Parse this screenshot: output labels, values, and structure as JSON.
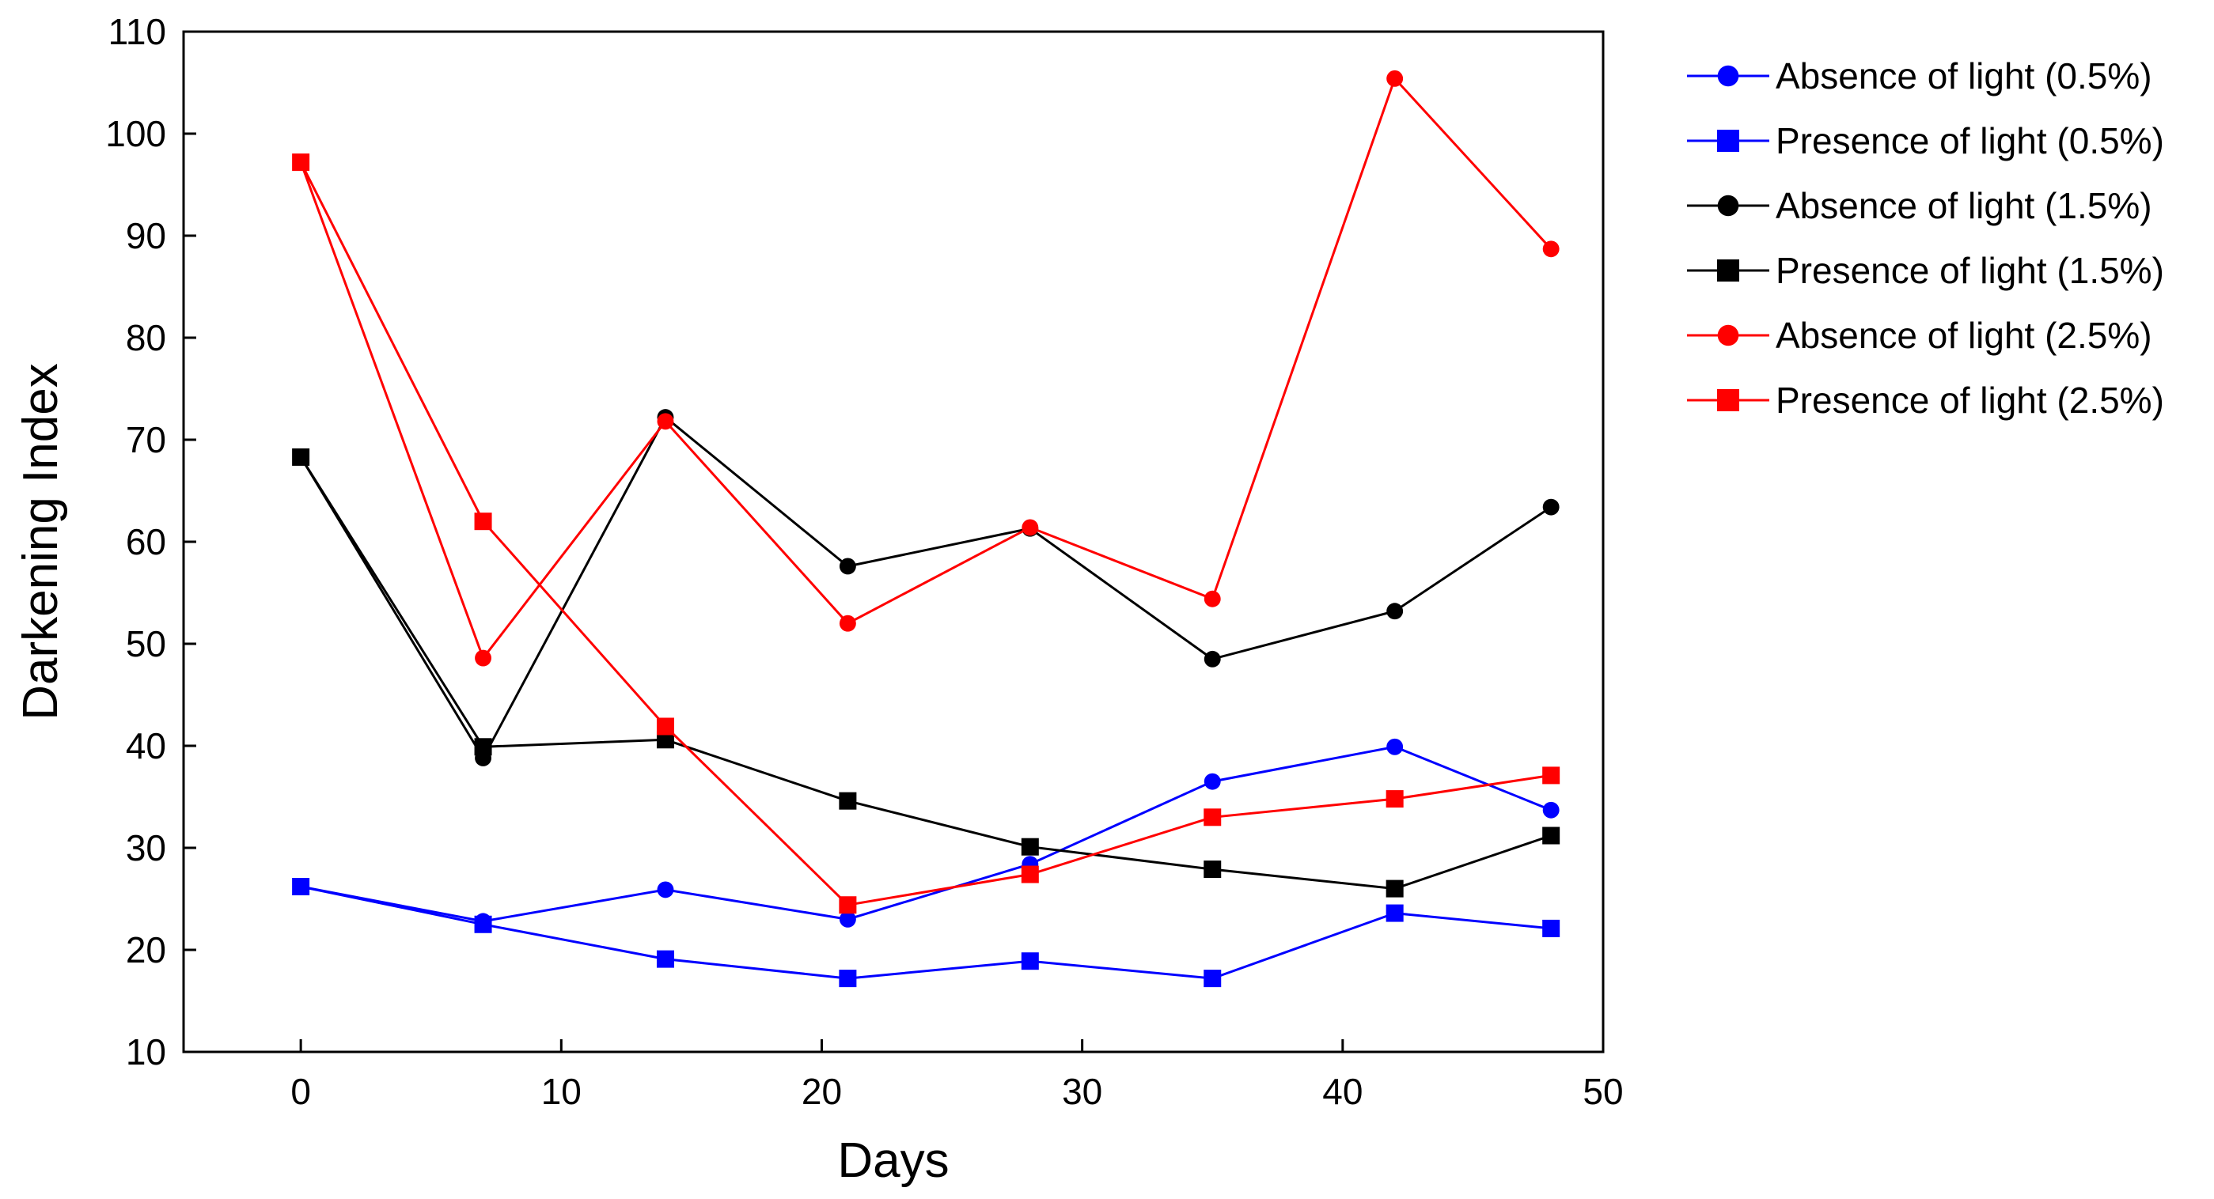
{
  "chart_data": {
    "type": "line",
    "title": "",
    "xlabel": "Days",
    "ylabel": "Darkening Index",
    "xlim": [
      -4.5,
      50
    ],
    "ylim": [
      10,
      110
    ],
    "xticks": [
      0,
      10,
      20,
      30,
      40,
      50
    ],
    "yticks": [
      10,
      20,
      30,
      40,
      50,
      60,
      70,
      80,
      90,
      100,
      110
    ],
    "grid": false,
    "legend_position": "right",
    "x": [
      0,
      7,
      14,
      21,
      28,
      35,
      42,
      48
    ],
    "series": [
      {
        "name": "Absence of light (0.5%)",
        "color": "#0000FF",
        "marker": "circle",
        "values": [
          26.2,
          22.8,
          25.9,
          23.0,
          28.4,
          36.5,
          39.9,
          33.7
        ]
      },
      {
        "name": "Presence of light (0.5%)",
        "color": "#0000FF",
        "marker": "square",
        "values": [
          26.2,
          22.5,
          19.1,
          17.2,
          18.9,
          17.2,
          23.6,
          22.1
        ]
      },
      {
        "name": "Absence of light (1.5%)",
        "color": "#000000",
        "marker": "circle",
        "values": [
          68.3,
          38.8,
          72.2,
          57.6,
          61.3,
          48.5,
          53.2,
          63.4
        ]
      },
      {
        "name": "Presence of light (1.5%)",
        "color": "#000000",
        "marker": "square",
        "values": [
          68.3,
          39.9,
          40.6,
          34.6,
          30.1,
          27.9,
          26.0,
          31.2
        ]
      },
      {
        "name": "Absence of light (2.5%)",
        "color": "#FF0000",
        "marker": "circle",
        "values": [
          97.2,
          48.6,
          71.8,
          52.0,
          61.4,
          54.4,
          105.4,
          88.7
        ]
      },
      {
        "name": "Presence of light (2.5%)",
        "color": "#FF0000",
        "marker": "square",
        "values": [
          97.2,
          62.0,
          41.9,
          24.4,
          27.4,
          33.0,
          34.8,
          37.1
        ]
      }
    ]
  }
}
